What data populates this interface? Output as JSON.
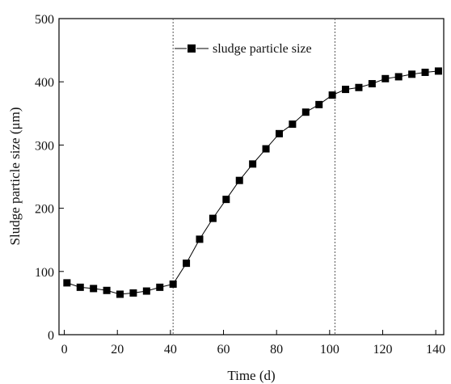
{
  "chart_data": {
    "type": "line",
    "xlabel": "Time (d)",
    "ylabel": "Sludge particle size (μm)",
    "xlim": [
      -2,
      143
    ],
    "ylim": [
      0,
      500
    ],
    "xticks": [
      0,
      20,
      40,
      60,
      80,
      100,
      120,
      140
    ],
    "yticks": [
      0,
      100,
      200,
      300,
      400,
      500
    ],
    "grid": false,
    "legend_position": "top-center",
    "vertical_reference_lines": [
      41,
      102
    ],
    "series": [
      {
        "name": "sludge particle size",
        "marker": "square",
        "color": "#000000",
        "x": [
          1,
          6,
          11,
          16,
          21,
          26,
          31,
          36,
          41,
          46,
          51,
          56,
          61,
          66,
          71,
          76,
          81,
          86,
          91,
          96,
          101,
          106,
          111,
          116,
          121,
          126,
          131,
          136,
          141
        ],
        "y": [
          82,
          75,
          73,
          70,
          64,
          66,
          69,
          75,
          80,
          113,
          151,
          184,
          214,
          244,
          270,
          294,
          318,
          333,
          352,
          364,
          379,
          388,
          391,
          397,
          405,
          408,
          412,
          415,
          417
        ]
      }
    ]
  }
}
